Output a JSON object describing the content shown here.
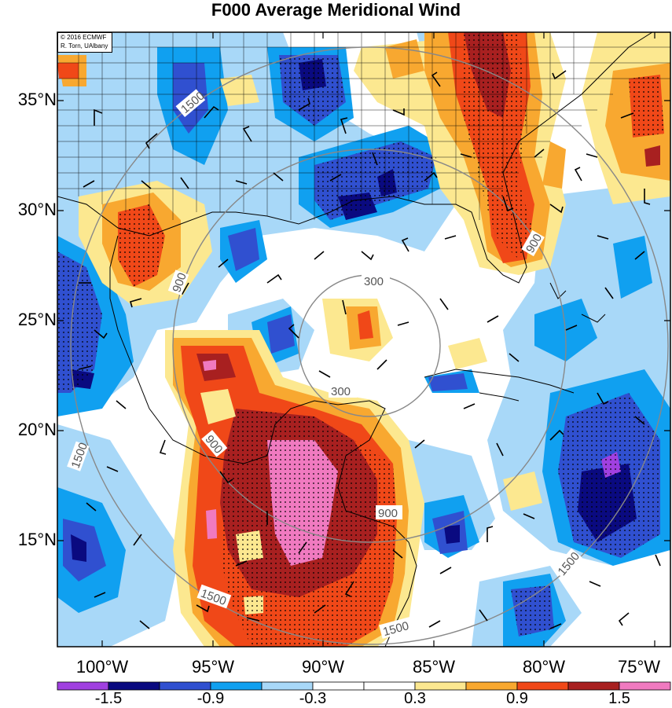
{
  "title": "F000 Average Meridional Wind",
  "credit": {
    "line1": "© 2016 ECMWF",
    "line2": "R. Torn, UAlbany"
  },
  "lat_labels": [
    "35°N",
    "30°N",
    "25°N",
    "20°N",
    "15°N"
  ],
  "lon_labels": [
    "100°W",
    "95°W",
    "90°W",
    "85°W",
    "80°W",
    "75°W"
  ],
  "contour_labels": [
    "300",
    "300",
    "900",
    "900",
    "900",
    "900",
    "1500",
    "1500",
    "1500",
    "1500",
    "1500"
  ],
  "colorbar": {
    "colors": [
      "#a040e0",
      "#0a0a80",
      "#3050d0",
      "#10a0f0",
      "#a8d8f8",
      "#ffffff",
      "#ffffff",
      "#fce890",
      "#f8a830",
      "#f04818",
      "#a82020",
      "#f07ac0"
    ],
    "labels": [
      "-1.5",
      "-0.9",
      "-0.3",
      "0.3",
      "0.9",
      "1.5"
    ]
  }
}
